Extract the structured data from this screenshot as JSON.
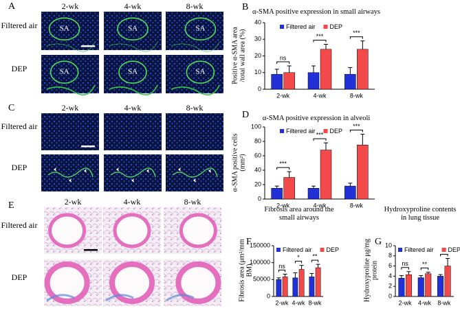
{
  "panels": [
    {
      "letter": "A",
      "columns": [
        "2-wk",
        "4-wk",
        "8-wk"
      ],
      "rows": [
        "Filtered air",
        "DEP"
      ],
      "labels": [
        "SA",
        "SA",
        "SA",
        "SA",
        "SA",
        "SA"
      ]
    },
    {
      "letter": "C",
      "columns": [
        "2-wk",
        "4-wk",
        "8-wk"
      ],
      "rows": [
        "Filtered air",
        "DEP"
      ]
    },
    {
      "letter": "E",
      "columns": [
        "2-wk",
        "4-wk",
        "8-wk"
      ],
      "rows": [
        "Filtered air",
        "DEP"
      ]
    }
  ],
  "chart_data": [
    {
      "type": "bar",
      "letter": "B",
      "title": "α-SMA positive expression in small airways",
      "ylabel": "Positive α-SMA area /total wall area (%)",
      "categories": [
        "2-wk",
        "4-wk",
        "8-wk"
      ],
      "series": [
        {
          "name": "Filtered air",
          "color": "#2230d8",
          "values": [
            9,
            10,
            9
          ],
          "errors": [
            3,
            4,
            4
          ]
        },
        {
          "name": "DEP",
          "color": "#f24a4a",
          "values": [
            10,
            24,
            24
          ],
          "errors": [
            4,
            3,
            5
          ]
        }
      ],
      "significance": [
        "ns",
        "***",
        "***"
      ],
      "ylim": [
        0,
        40
      ],
      "yticks": [
        0,
        10,
        20,
        30,
        40
      ]
    },
    {
      "type": "bar",
      "letter": "D",
      "title": "α-SMA positive expression in alveoli",
      "ylabel": "α-SMA positive cells (mm²)",
      "categories": [
        "2-wk",
        "4-wk",
        "8-wk"
      ],
      "series": [
        {
          "name": "Filtered air",
          "color": "#2230d8",
          "values": [
            15,
            15,
            18
          ],
          "errors": [
            3,
            3,
            4
          ]
        },
        {
          "name": "DEP",
          "color": "#f24a4a",
          "values": [
            30,
            68,
            75
          ],
          "errors": [
            8,
            10,
            15
          ]
        }
      ],
      "significance": [
        "***",
        "***",
        "***"
      ],
      "ylim": [
        0,
        100
      ],
      "yticks": [
        0,
        20,
        40,
        60,
        80,
        100
      ]
    },
    {
      "type": "bar",
      "letter": "F",
      "title": "Fibrosis area around the small airways",
      "ylabel": "Fibrosis area (μm²/mm BM)",
      "categories": [
        "2-wk",
        "4-wk",
        "8-wk"
      ],
      "series": [
        {
          "name": "Filtered air",
          "color": "#2230d8",
          "values": [
            50000,
            55000,
            58000
          ],
          "errors": [
            5000,
            15000,
            10000
          ]
        },
        {
          "name": "DEP",
          "color": "#f24a4a",
          "values": [
            58000,
            80000,
            85000
          ],
          "errors": [
            8000,
            12000,
            10000
          ]
        }
      ],
      "significance": [
        "ns",
        "*",
        "**"
      ],
      "ylim": [
        0,
        150000
      ],
      "yticks": [
        0,
        50000,
        100000,
        150000
      ]
    },
    {
      "type": "bar",
      "letter": "G",
      "title": "Hydroxyproline contents in lung tissue",
      "ylabel": "Hydroxyproline μg/mg protein",
      "categories": [
        "2-wk",
        "4-wk",
        "8-wk"
      ],
      "series": [
        {
          "name": "Filtered air",
          "color": "#2230d8",
          "values": [
            3.6,
            3.7,
            4.0
          ],
          "errors": [
            0.5,
            0.4,
            0.3
          ]
        },
        {
          "name": "DEP",
          "color": "#f24a4a",
          "values": [
            4.3,
            4.5,
            6.0
          ],
          "errors": [
            0.6,
            0.3,
            1.5
          ]
        }
      ],
      "significance": [
        "ns",
        "**",
        "**"
      ],
      "ylim": [
        0,
        10
      ],
      "yticks": [
        0,
        2,
        4,
        6,
        8,
        10
      ]
    }
  ]
}
